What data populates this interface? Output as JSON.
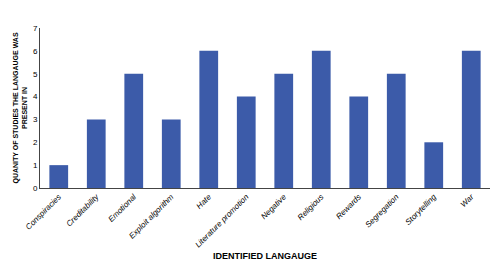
{
  "chart_data": {
    "type": "bar",
    "categories": [
      "Conspiracies",
      "Creditability",
      "Emotional",
      "Exploit algorithm",
      "Hate",
      "Literature promotion",
      "Negative",
      "Religious",
      "Rewards",
      "Segregation",
      "Storytelling",
      "War"
    ],
    "values": [
      1,
      3,
      5,
      3,
      6,
      4,
      5,
      6,
      4,
      5,
      2,
      6
    ],
    "color": "#3C5BA9",
    "xlabel": "IDENTIFIED LANGAUGE",
    "ylabel": "QUANITY OF STUDIES THE LANGAUGE WAS\nPRESENT IN",
    "ylim": [
      0,
      7
    ],
    "yticks": [
      0,
      1,
      2,
      3,
      4,
      5,
      6,
      7
    ],
    "grid": false
  }
}
